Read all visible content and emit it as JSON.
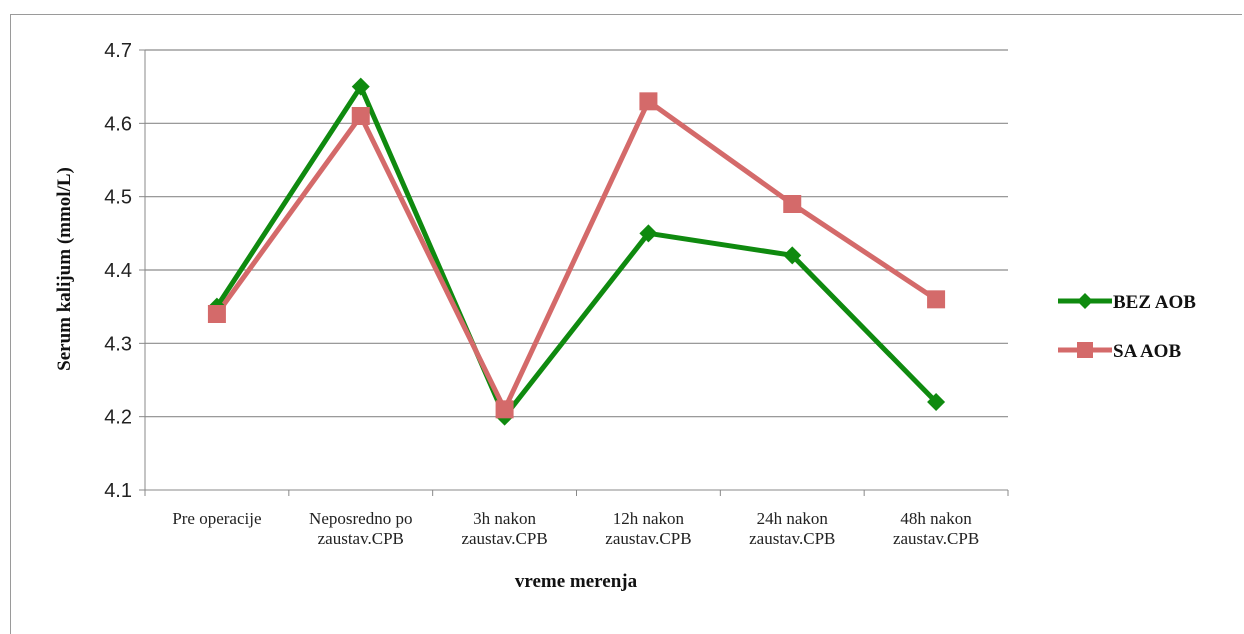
{
  "chart_data": {
    "type": "line",
    "title": "",
    "xlabel": "vreme merenja",
    "ylabel": "Serum kalijum (mmol/L)",
    "ylim": [
      4.1,
      4.7
    ],
    "yticks": [
      "4.1",
      "4.2",
      "4.3",
      "4.4",
      "4.5",
      "4.6",
      "4.7"
    ],
    "categories": [
      [
        "Pre operacije"
      ],
      [
        "Neposredno po",
        "zaustav.CPB"
      ],
      [
        "3h nakon",
        "zaustav.CPB"
      ],
      [
        "12h nakon",
        "zaustav.CPB"
      ],
      [
        "24h nakon",
        "zaustav.CPB"
      ],
      [
        "48h nakon",
        "zaustav.CPB"
      ]
    ],
    "grid": true,
    "legend_position": "right",
    "series": [
      {
        "name": "BEZ AOB",
        "color": "#0f8a0f",
        "marker": "diamond",
        "values": [
          4.35,
          4.65,
          4.2,
          4.45,
          4.42,
          4.22
        ]
      },
      {
        "name": "SA AOB",
        "color": "#d46a6a",
        "marker": "square",
        "values": [
          4.34,
          4.61,
          4.21,
          4.63,
          4.49,
          4.36
        ]
      }
    ]
  }
}
